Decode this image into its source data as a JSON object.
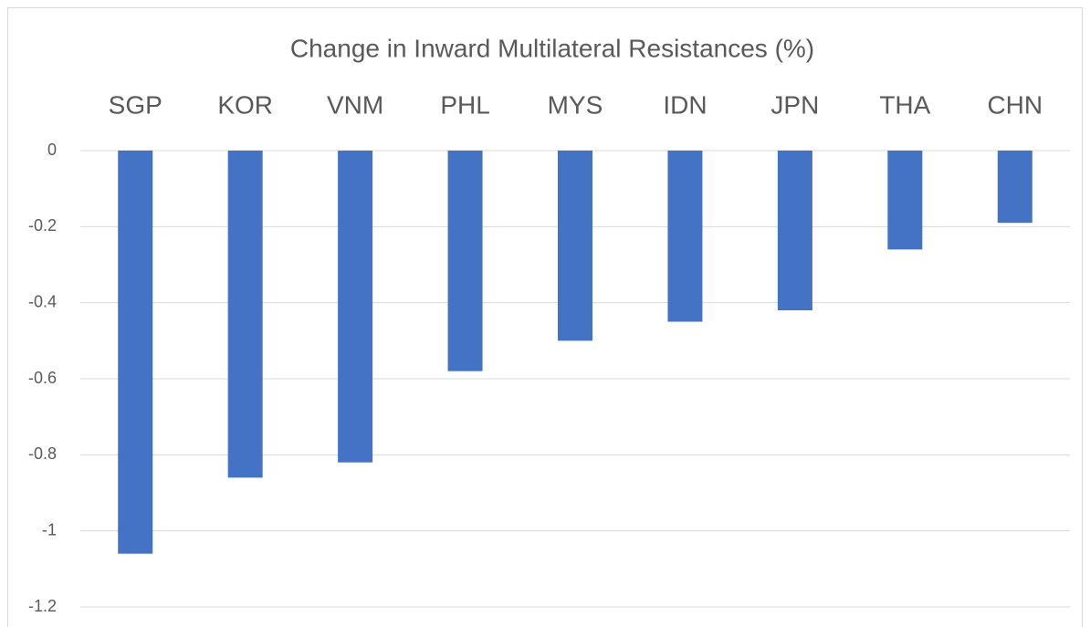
{
  "chart_data": {
    "type": "bar",
    "title": "Change in Inward Multilateral Resistances (%)",
    "categories": [
      "SGP",
      "KOR",
      "VNM",
      "PHL",
      "MYS",
      "IDN",
      "JPN",
      "THA",
      "CHN"
    ],
    "values": [
      -1.06,
      -0.86,
      -0.82,
      -0.58,
      -0.5,
      -0.45,
      -0.42,
      -0.26,
      -0.19
    ],
    "color": "#4472c4",
    "ylim": [
      -1.2,
      0
    ],
    "yticks": [
      0,
      -0.2,
      -0.4,
      -0.6,
      -0.8,
      -1,
      -1.2
    ],
    "grid": true
  }
}
